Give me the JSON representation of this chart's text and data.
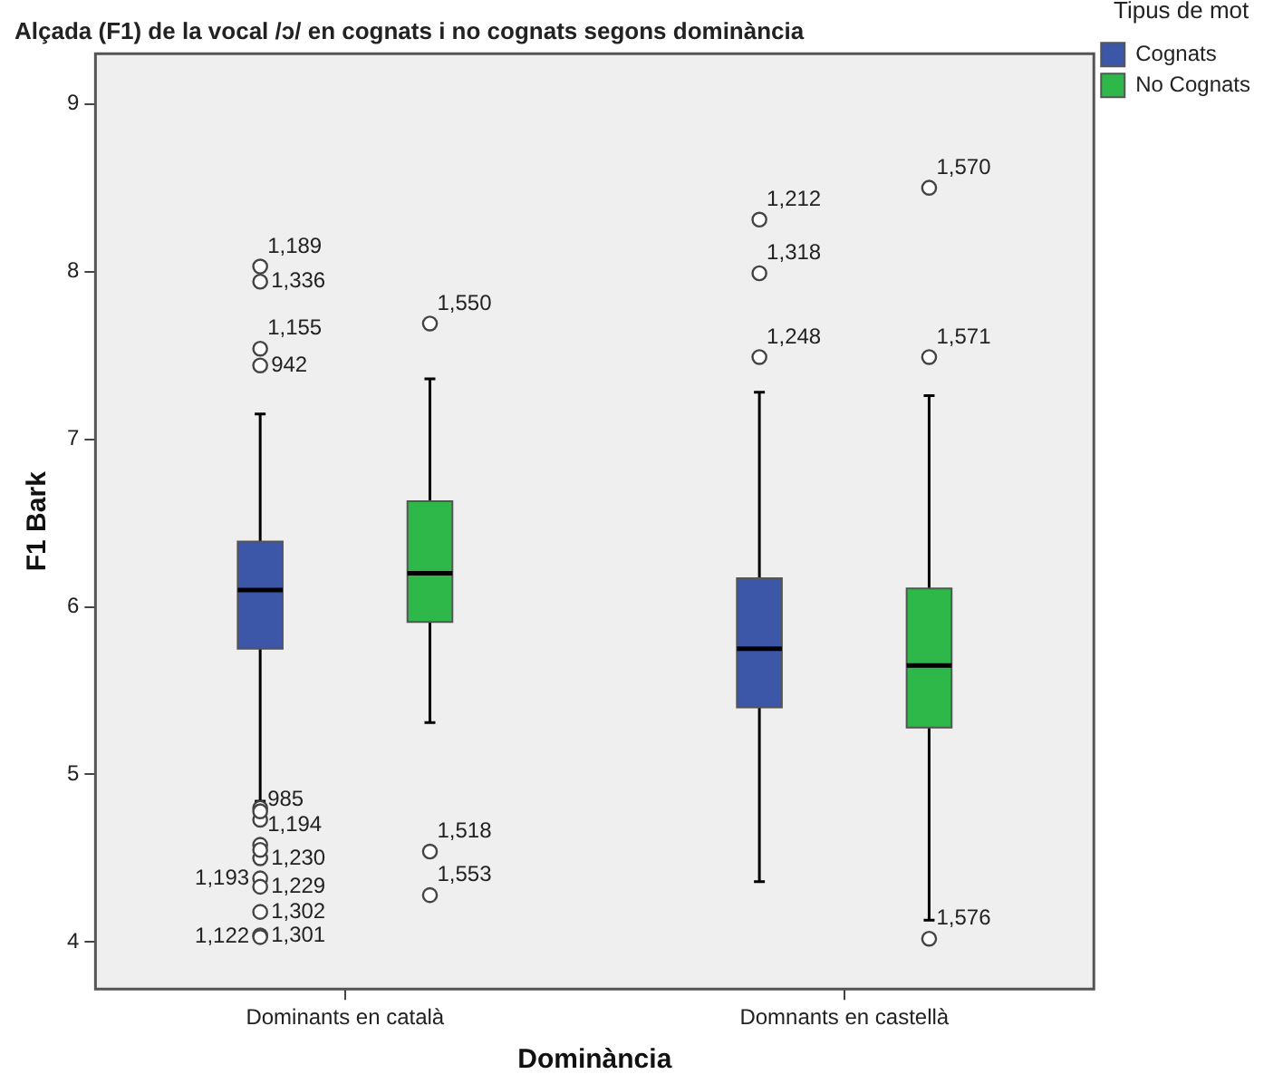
{
  "chart_data": {
    "type": "box",
    "title": "Alçada (F1) de la vocal /ɔ/ en cognats i no cognats segons dominància",
    "xlabel": "Dominància",
    "ylabel": "F1 Bark",
    "legend_title": "Tipus de mot",
    "legend": "top right",
    "categories": [
      "Dominants en català",
      "Domnants en castellà"
    ],
    "ylim": [
      3.72,
      9.3
    ],
    "yticks": [
      4,
      5,
      6,
      7,
      8,
      9
    ],
    "series": [
      {
        "name": "Cognats",
        "color": "#3c56a8",
        "boxes": [
          {
            "low": 4.84,
            "q1": 5.75,
            "median": 6.1,
            "q3": 6.39,
            "high": 7.15,
            "outliers": [
              8.03,
              7.94,
              7.54,
              7.44,
              4.73,
              4.58,
              4.5,
              4.38,
              4.33,
              4.18,
              4.04,
              4.03,
              4.8,
              4.78,
              4.55
            ]
          },
          {
            "low": 4.36,
            "q1": 5.4,
            "median": 5.75,
            "q3": 6.17,
            "high": 7.28,
            "outliers": [
              8.31,
              7.99,
              7.49
            ]
          }
        ]
      },
      {
        "name": "No Cognats",
        "color": "#2eb84a",
        "boxes": [
          {
            "low": 5.31,
            "q1": 5.91,
            "median": 6.2,
            "q3": 6.63,
            "high": 7.36,
            "outliers": [
              7.69,
              4.54,
              4.28
            ]
          },
          {
            "low": 4.13,
            "q1": 5.28,
            "median": 5.65,
            "q3": 6.11,
            "high": 7.26,
            "outliers": [
              8.5,
              7.49,
              4.02
            ]
          }
        ]
      }
    ],
    "annotations": [
      "1,570",
      "1,571",
      "1,576",
      "1,550",
      "1,518",
      "1,553",
      "1,212",
      "1,318",
      "1,248",
      "1,189",
      "1,336",
      "1,155",
      "942",
      "985",
      "1,194",
      "1,230",
      "1,193",
      "1,229",
      "1,302",
      "1,301",
      "1,122"
    ]
  }
}
